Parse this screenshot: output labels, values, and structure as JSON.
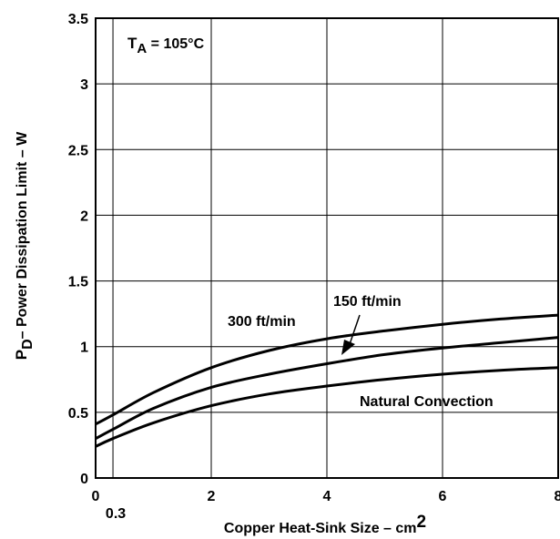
{
  "chart_data": {
    "type": "line",
    "xlabel": {
      "main": "Copper Heat-Sink Size – cm",
      "sup": "2"
    },
    "ylabel": {
      "pre": "P",
      "sub": "D",
      "post": "– Power Dissipation Limit  – W"
    },
    "xlim": [
      0,
      8
    ],
    "ylim": [
      0,
      3.5
    ],
    "x_ticks": [
      0,
      2,
      4,
      6,
      8
    ],
    "x_tick_labels": [
      "0",
      "2",
      "4",
      "6",
      "8"
    ],
    "x_extra_tick": {
      "value": 0.3,
      "label": "0.3"
    },
    "y_ticks": [
      0,
      0.5,
      1,
      1.5,
      2,
      2.5,
      3,
      3.5
    ],
    "y_tick_labels": [
      "0",
      "0.5",
      "1",
      "1.5",
      "2",
      "2.5",
      "3",
      "3.5"
    ],
    "grid": true,
    "condition": {
      "pre": "T",
      "sub": "A",
      "post": " = 105°C"
    },
    "series": [
      {
        "name": "300 ft/min",
        "x": [
          0,
          0.3,
          1,
          2,
          3,
          4,
          5,
          6,
          7,
          8
        ],
        "values": [
          0.41,
          0.48,
          0.65,
          0.84,
          0.97,
          1.06,
          1.12,
          1.17,
          1.21,
          1.24
        ]
      },
      {
        "name": "150 ft/min",
        "x": [
          0,
          0.3,
          1,
          2,
          3,
          4,
          5,
          6,
          7,
          8
        ],
        "values": [
          0.3,
          0.37,
          0.53,
          0.69,
          0.79,
          0.87,
          0.94,
          0.99,
          1.03,
          1.07
        ]
      },
      {
        "name": "Natural Convection",
        "x": [
          0,
          0.3,
          1,
          2,
          3,
          4,
          5,
          6,
          7,
          8
        ],
        "values": [
          0.24,
          0.3,
          0.42,
          0.55,
          0.64,
          0.7,
          0.75,
          0.79,
          0.82,
          0.84
        ]
      }
    ]
  }
}
